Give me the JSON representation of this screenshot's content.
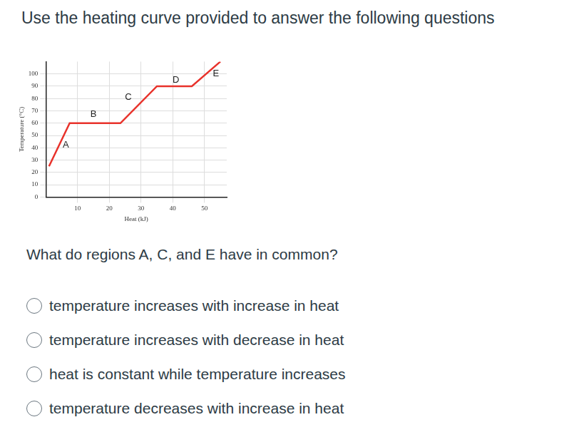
{
  "heading": "Use the heating curve provided to answer the following questions",
  "chart_data": {
    "type": "line",
    "x_label": "Heat (kJ)",
    "y_label": "Temperature (°C)",
    "x": [
      1,
      7.5,
      23.5,
      35,
      46,
      55
    ],
    "values": [
      25,
      60,
      60,
      90,
      90,
      110
    ],
    "color": "#e8322b",
    "xlim": [
      0,
      57
    ],
    "xticks": [
      10,
      20,
      30,
      40,
      50
    ],
    "ylim": [
      0,
      110
    ],
    "yticks": [
      0,
      10,
      20,
      30,
      40,
      50,
      60,
      70,
      80,
      90,
      100
    ],
    "grid": true,
    "annotations": [
      {
        "text": "A",
        "x": 6.3,
        "y": 42
      },
      {
        "text": "B",
        "x": 15,
        "y": 67
      },
      {
        "text": "C",
        "x": 26,
        "y": 81
      },
      {
        "text": "D",
        "x": 41,
        "y": 95
      },
      {
        "text": "E",
        "x": 53.6,
        "y": 100
      }
    ]
  },
  "question": "What do regions A, C, and E have in common?",
  "options": [
    "temperature increases with increase in heat",
    "temperature increases with decrease in heat",
    "heat is constant while temperature increases",
    "temperature decreases with increase in heat"
  ]
}
